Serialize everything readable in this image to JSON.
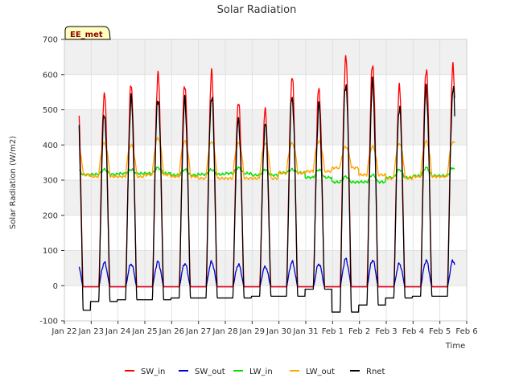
{
  "chart_data": {
    "type": "line",
    "title": "Solar Radiation",
    "xlabel": "Time",
    "ylabel": "Solar Radiation (W/m2)",
    "badge": "EE_met",
    "ylim": [
      -100,
      700
    ],
    "yticks": [
      -100,
      0,
      100,
      200,
      300,
      400,
      500,
      600,
      700
    ],
    "xlim": [
      0,
      15
    ],
    "xticks": [
      0,
      1,
      2,
      3,
      4,
      5,
      6,
      7,
      8,
      9,
      10,
      11,
      12,
      13,
      14,
      15
    ],
    "xtick_labels": [
      "Jan 22",
      "Jan 23",
      "Jan 24",
      "Jan 25",
      "Jan 26",
      "Jan 27",
      "Jan 28",
      "Jan 29",
      "Jan 30",
      "Jan 31",
      "Feb 1",
      "Feb 2",
      "Feb 3",
      "Feb 4",
      "Feb 5",
      "Feb 6"
    ],
    "x_note": "x values are day offsets from Jan 22 00:00 (axis runs Jan 22 to Feb 6)",
    "grid": true,
    "legend_position": "bottom",
    "series": [
      {
        "name": "SW_in",
        "color": "#ff0000",
        "daily_peaks": [
          578,
          550,
          575,
          600,
          578,
          603,
          530,
          500,
          597,
          565,
          648,
          638,
          563,
          623
        ]
      },
      {
        "name": "SW_out",
        "color": "#0000cc",
        "daily_peaks": [
          65,
          68,
          65,
          70,
          66,
          70,
          63,
          57,
          70,
          65,
          78,
          76,
          65,
          74
        ]
      },
      {
        "name": "LW_in",
        "color": "#00e000",
        "daily_range": [
          [
            298,
            330
          ],
          [
            300,
            330
          ],
          [
            305,
            330
          ],
          [
            300,
            335
          ],
          [
            295,
            330
          ],
          [
            300,
            330
          ],
          [
            300,
            335
          ],
          [
            295,
            330
          ],
          [
            310,
            330
          ],
          [
            280,
            330
          ],
          [
            275,
            310
          ],
          [
            270,
            315
          ],
          [
            280,
            330
          ],
          [
            285,
            335
          ]
        ]
      },
      {
        "name": "LW_out",
        "color": "#ffa500",
        "daily_range": [
          [
            315,
            405
          ],
          [
            310,
            405
          ],
          [
            310,
            400
          ],
          [
            315,
            420
          ],
          [
            310,
            410
          ],
          [
            305,
            410
          ],
          [
            305,
            405
          ],
          [
            305,
            405
          ],
          [
            320,
            405
          ],
          [
            325,
            410
          ],
          [
            335,
            395
          ],
          [
            315,
            395
          ],
          [
            305,
            405
          ],
          [
            310,
            410
          ]
        ]
      },
      {
        "name": "Rnet",
        "color": "#000000",
        "daily_peaks": [
          515,
          490,
          527,
          537,
          522,
          542,
          470,
          460,
          540,
          510,
          580,
          573,
          510,
          560
        ],
        "night_values": [
          -70,
          -45,
          -40,
          -40,
          -35,
          -35,
          -35,
          -30,
          -30,
          -10,
          -75,
          -55,
          -35,
          -30
        ]
      }
    ]
  }
}
